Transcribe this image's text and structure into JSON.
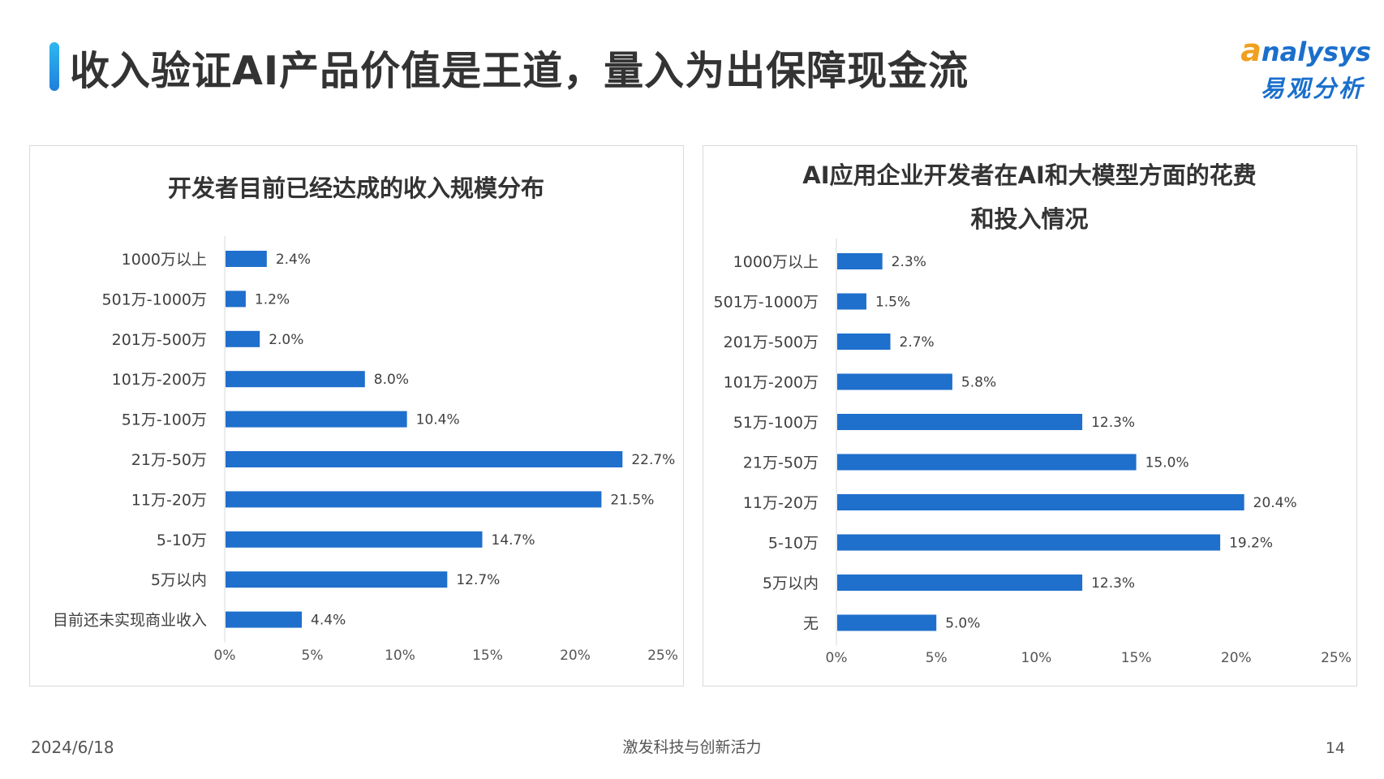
{
  "header": {
    "title": "收入验证AI产品价值是王道，量入为出保障现金流",
    "logo": {
      "en_prefix": "a",
      "en_rest": "nalysys",
      "cn": "易观分析"
    }
  },
  "colors": {
    "bar": "#1f6fcc",
    "title_bar": "#1f7fdc",
    "logo_blue": "#1a6fcc",
    "logo_orange": "#f0a020"
  },
  "footer": {
    "date": "2024/6/18",
    "tagline": "激发科技与创新活力",
    "page": "14"
  },
  "chart_data": [
    {
      "type": "bar",
      "orientation": "horizontal",
      "title_lines": [
        "开发者目前已经达成的收入规模分布"
      ],
      "categories": [
        "1000万以上",
        "501万-1000万",
        "201万-500万",
        "101万-200万",
        "51万-100万",
        "21万-50万",
        "11万-20万",
        "5-10万",
        "5万以内",
        "目前还未实现商业收入"
      ],
      "values": [
        2.4,
        1.2,
        2.0,
        8.0,
        10.4,
        22.7,
        21.5,
        14.7,
        12.7,
        4.4
      ],
      "value_labels": [
        "2.4%",
        "1.2%",
        "2.0%",
        "8.0%",
        "10.4%",
        "22.7%",
        "21.5%",
        "14.7%",
        "12.7%",
        "4.4%"
      ],
      "xlim": [
        0,
        25
      ],
      "x_ticks": [
        "0%",
        "5%",
        "10%",
        "15%",
        "20%",
        "25%"
      ],
      "grid": false
    },
    {
      "type": "bar",
      "orientation": "horizontal",
      "title_lines": [
        "AI应用企业开发者在AI和大模型方面的花费",
        "和投入情况"
      ],
      "categories": [
        "1000万以上",
        "501万-1000万",
        "201万-500万",
        "101万-200万",
        "51万-100万",
        "21万-50万",
        "11万-20万",
        "5-10万",
        "5万以内",
        "无"
      ],
      "values": [
        2.3,
        1.5,
        2.7,
        5.8,
        12.3,
        15.0,
        20.4,
        19.2,
        12.3,
        5.0
      ],
      "value_labels": [
        "2.3%",
        "1.5%",
        "2.7%",
        "5.8%",
        "12.3%",
        "15.0%",
        "20.4%",
        "19.2%",
        "12.3%",
        "5.0%"
      ],
      "xlim": [
        0,
        25
      ],
      "x_ticks": [
        "0%",
        "5%",
        "10%",
        "15%",
        "20%",
        "25%"
      ],
      "grid": false
    }
  ]
}
